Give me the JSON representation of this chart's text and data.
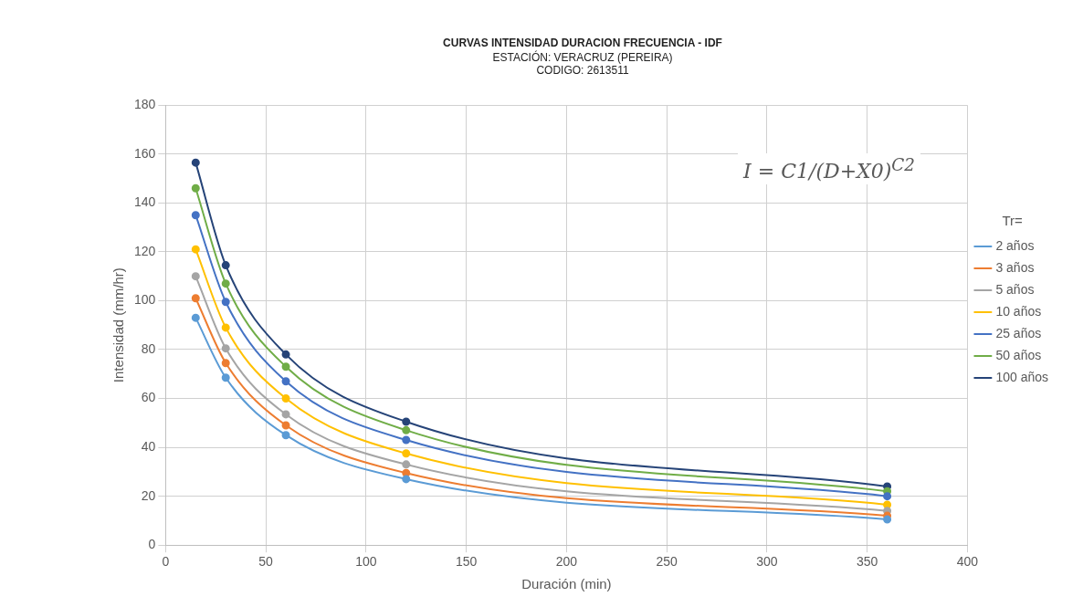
{
  "chart_data": {
    "type": "line",
    "title": "CURVAS INTENSIDAD DURACION FRECUENCIA - IDF",
    "subtitle": "ESTACIÓN: VERACRUZ (PEREIRA)\nCODIGO: 2613511",
    "xlabel": "Duración (min)",
    "ylabel": "Intensidad (mm/hr)",
    "legend_title": "Tr=",
    "annotations": [
      "I = C1/(D+X0)$^{C2}$"
    ],
    "x": [
      15,
      30,
      60,
      120,
      360
    ],
    "series": [
      {
        "name": "2 años",
        "color": "#5b9bd5",
        "values": [
          93,
          68.5,
          45,
          27,
          10.5
        ]
      },
      {
        "name": "3 años",
        "color": "#ed7d31",
        "values": [
          101,
          74.5,
          49,
          29.5,
          12
        ]
      },
      {
        "name": "5 años",
        "color": "#a5a5a5",
        "values": [
          110,
          80.5,
          53.5,
          33,
          14
        ]
      },
      {
        "name": "10 años",
        "color": "#ffc000",
        "values": [
          121,
          89,
          60,
          37.5,
          16.5
        ]
      },
      {
        "name": "25 años",
        "color": "#4472c4",
        "values": [
          135,
          99.5,
          67,
          43,
          20
        ]
      },
      {
        "name": "50 años",
        "color": "#70ad47",
        "values": [
          146,
          107,
          73,
          47,
          22
        ]
      },
      {
        "name": "100 años",
        "color": "#264478",
        "values": [
          156.5,
          114.5,
          78,
          50.5,
          24
        ]
      }
    ],
    "xlim": [
      0,
      400
    ],
    "xticks": [
      0,
      50,
      100,
      150,
      200,
      250,
      300,
      350,
      400
    ],
    "ylim": [
      0,
      180
    ],
    "yticks": [
      0,
      20,
      40,
      60,
      80,
      100,
      120,
      140,
      160,
      180
    ],
    "grid": true,
    "legend": "right",
    "marker": "circle",
    "line_style": "solid"
  }
}
